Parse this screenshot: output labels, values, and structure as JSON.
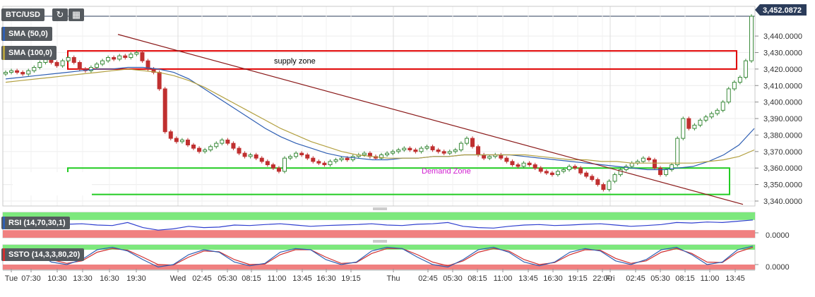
{
  "toolbar": {
    "symbol": "BTC/USD",
    "refresh_icon": "refresh-icon",
    "calendar_icon": "calendar-icon"
  },
  "indicators": {
    "sma50": {
      "label": "SMA (50,0)",
      "color": "#2f5fb3"
    },
    "sma100": {
      "label": "SMA (100,0)",
      "color": "#b3a040"
    },
    "rsi": {
      "label": "RSI (14,70,30,1)",
      "value_label": "0.0000"
    },
    "ssto": {
      "label": "SSTO (14,3,3,80,20)",
      "value_label": "0.0000"
    }
  },
  "chart_data": {
    "type": "candlestick",
    "pair": "BTC/USD",
    "last_price": "3,452.0872",
    "y_ticks": [
      "3,340.0000",
      "3,350.0000",
      "3,360.0000",
      "3,370.0000",
      "3,380.0000",
      "3,390.0000",
      "3,400.0000",
      "3,410.0000",
      "3,420.0000",
      "3,430.0000",
      "3,440.0000"
    ],
    "y_tick_values": [
      3340,
      3350,
      3360,
      3370,
      3380,
      3390,
      3400,
      3410,
      3420,
      3430,
      3440
    ],
    "ylim": [
      3337,
      3458
    ],
    "x_ticks": [
      "Tue",
      "07:30",
      "10:30",
      "13:30",
      "16:30",
      "19:30",
      "Wed",
      "02:45",
      "05:30",
      "08:15",
      "11:00",
      "13:45",
      "16:30",
      "19:15",
      "Thu",
      "02:45",
      "05:30",
      "08:15",
      "11:00",
      "13:45",
      "16:30",
      "19:15",
      "22:00",
      "Fri",
      "02:45",
      "05:30",
      "08:15",
      "11:00",
      "13:45"
    ],
    "annotations": [
      {
        "label": "supply zone",
        "y_range": [
          3420,
          3431
        ],
        "color": "#e00000"
      },
      {
        "label": "Demand Zone",
        "y_range": [
          3344,
          3360
        ],
        "color": "#22cc22"
      }
    ],
    "trendline": {
      "from": 3441,
      "to": 3338
    },
    "close_series": [
      3418,
      3419,
      3418,
      3417,
      3419,
      3421,
      3424,
      3426,
      3424,
      3422,
      3425,
      3427,
      3424,
      3420,
      3419,
      3421,
      3423,
      3425,
      3427,
      3426,
      3428,
      3427,
      3429,
      3430,
      3425,
      3420,
      3418,
      3408,
      3382,
      3378,
      3376,
      3377,
      3374,
      3372,
      3370,
      3371,
      3373,
      3375,
      3377,
      3375,
      3372,
      3369,
      3367,
      3368,
      3366,
      3364,
      3362,
      3360,
      3358,
      3366,
      3367,
      3369,
      3368,
      3366,
      3364,
      3363,
      3362,
      3364,
      3365,
      3366,
      3365,
      3367,
      3368,
      3369,
      3367,
      3366,
      3368,
      3369,
      3370,
      3371,
      3372,
      3371,
      3370,
      3372,
      3373,
      3371,
      3370,
      3369,
      3370,
      3371,
      3375,
      3378,
      3373,
      3368,
      3366,
      3367,
      3368,
      3366,
      3364,
      3362,
      3361,
      3363,
      3362,
      3360,
      3358,
      3357,
      3356,
      3358,
      3359,
      3361,
      3360,
      3357,
      3355,
      3353,
      3350,
      3347,
      3352,
      3356,
      3359,
      3361,
      3363,
      3364,
      3366,
      3365,
      3360,
      3356,
      3359,
      3362,
      3378,
      3390,
      3384,
      3386,
      3389,
      3391,
      3393,
      3395,
      3400,
      3408,
      3412,
      3415,
      3425,
      3452
    ],
    "sma50": [
      3414,
      3415,
      3416,
      3417,
      3418,
      3419,
      3420,
      3420,
      3421,
      3421,
      3420,
      3418,
      3414,
      3408,
      3402,
      3396,
      3390,
      3384,
      3379,
      3375,
      3372,
      3369,
      3367,
      3366,
      3365,
      3365,
      3366,
      3366,
      3367,
      3367,
      3368,
      3368,
      3368,
      3368,
      3367,
      3366,
      3365,
      3364,
      3363,
      3362,
      3361,
      3360,
      3359,
      3359,
      3360,
      3361,
      3364,
      3368,
      3374,
      3384
    ],
    "sma100": [
      3412,
      3413,
      3414,
      3415,
      3416,
      3417,
      3418,
      3419,
      3420,
      3419,
      3418,
      3416,
      3413,
      3409,
      3404,
      3399,
      3394,
      3389,
      3384,
      3380,
      3376,
      3373,
      3370,
      3368,
      3367,
      3366,
      3366,
      3366,
      3367,
      3367,
      3368,
      3368,
      3368,
      3368,
      3368,
      3367,
      3366,
      3365,
      3365,
      3364,
      3364,
      3363,
      3363,
      3363,
      3363,
      3363,
      3364,
      3365,
      3367,
      3371
    ],
    "rsi": {
      "ylim": [
        0,
        100
      ],
      "bands": [
        30,
        70
      ],
      "values": [
        55,
        52,
        50,
        48,
        53,
        55,
        50,
        48,
        60,
        40,
        30,
        35,
        45,
        40,
        42,
        50,
        48,
        52,
        55,
        50,
        45,
        48,
        50,
        52,
        55,
        50,
        48,
        53,
        55,
        60,
        45,
        40,
        38,
        45,
        50,
        52,
        48,
        50,
        53,
        55,
        50,
        45,
        48,
        52,
        60,
        58,
        62,
        60,
        65,
        70
      ]
    },
    "ssto": {
      "ylim": [
        0,
        100
      ],
      "bands": [
        20,
        80
      ],
      "k": [
        60,
        80,
        70,
        30,
        20,
        40,
        80,
        90,
        75,
        40,
        10,
        20,
        60,
        80,
        70,
        30,
        15,
        25,
        70,
        85,
        80,
        40,
        20,
        30,
        75,
        90,
        85,
        50,
        20,
        10,
        40,
        80,
        90,
        70,
        30,
        15,
        30,
        70,
        85,
        75,
        35,
        20,
        40,
        80,
        90,
        60,
        20,
        30,
        80,
        95
      ],
      "d": [
        55,
        75,
        72,
        40,
        25,
        35,
        70,
        85,
        78,
        50,
        20,
        18,
        50,
        75,
        72,
        40,
        20,
        22,
        60,
        80,
        80,
        50,
        25,
        28,
        65,
        85,
        85,
        60,
        30,
        15,
        35,
        70,
        85,
        75,
        40,
        20,
        28,
        60,
        80,
        78,
        45,
        25,
        35,
        70,
        85,
        65,
        30,
        28,
        70,
        90
      ]
    }
  }
}
